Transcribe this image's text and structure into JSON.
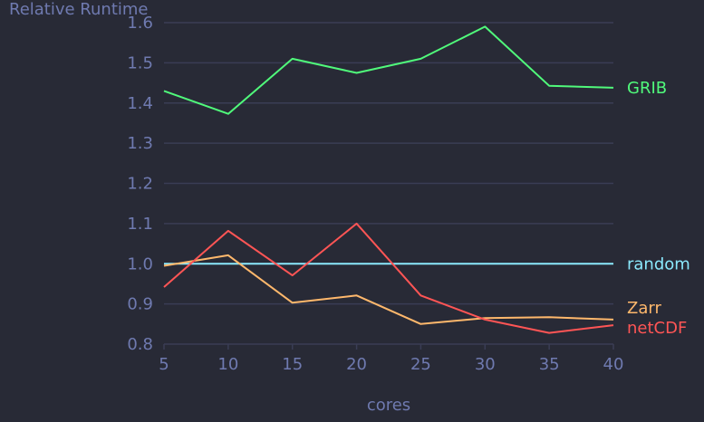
{
  "chart_data": {
    "type": "line",
    "title": "",
    "xlabel": "cores",
    "ylabel": "Relative Runtime",
    "x": [
      5,
      10,
      15,
      20,
      25,
      30,
      35,
      40
    ],
    "xticks": [
      "5",
      "10",
      "15",
      "20",
      "25",
      "30",
      "35",
      "40"
    ],
    "yticks": [
      "0.8",
      "0.9",
      "1.0",
      "1.1",
      "1.2",
      "1.3",
      "1.4",
      "1.5",
      "1.6"
    ],
    "xlim": [
      5,
      40
    ],
    "ylim": [
      0.8,
      1.6
    ],
    "grid": "horizontal",
    "legend": "labels at right end of each line",
    "series": [
      {
        "name": "GRIB",
        "color": "#50fa7b",
        "values": [
          1.43,
          1.373,
          1.51,
          1.475,
          1.51,
          1.59,
          1.443,
          1.438
        ]
      },
      {
        "name": "random",
        "color": "#8be9fd",
        "values": [
          1.0,
          1.0,
          1.0,
          1.0,
          1.0,
          1.0,
          1.0,
          1.0
        ]
      },
      {
        "name": "Zarr",
        "color": "#ffb86c",
        "values": [
          0.995,
          1.021,
          0.903,
          0.921,
          0.85,
          0.865,
          0.867,
          0.861
        ]
      },
      {
        "name": "netCDF",
        "color": "#ff5555",
        "values": [
          0.942,
          1.082,
          0.971,
          1.1,
          0.921,
          0.861,
          0.828,
          0.847
        ]
      }
    ]
  }
}
